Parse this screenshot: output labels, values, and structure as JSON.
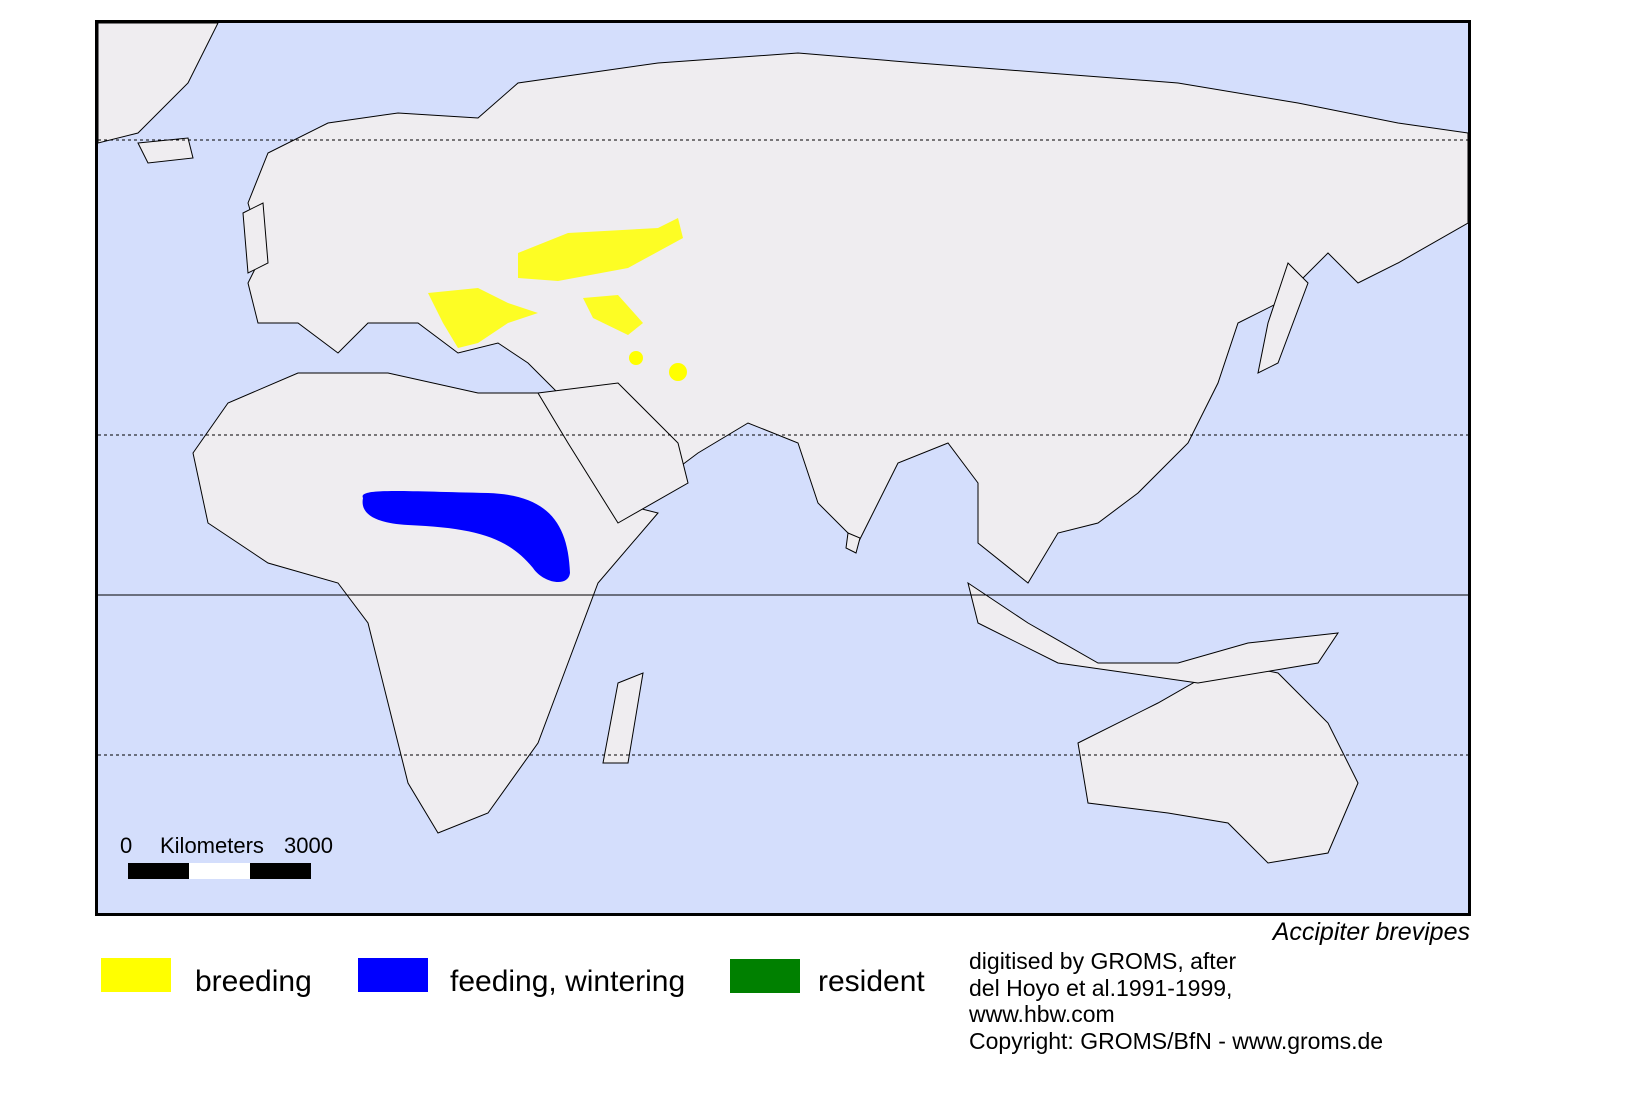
{
  "map": {
    "species": "Accipiter brevipes",
    "colors": {
      "ocean": "#d4defc",
      "land": "#efedf0",
      "breeding": "#ffff00",
      "wintering": "#0000ff",
      "resident": "#008000"
    },
    "scale": {
      "start": "0",
      "unit": "Kilometers",
      "end": "3000"
    }
  },
  "legend": [
    {
      "label": "breeding",
      "color": "#ffff00"
    },
    {
      "label": "feeding, wintering",
      "color": "#0000ff"
    },
    {
      "label": "resident",
      "color": "#008000"
    }
  ],
  "credit": [
    "digitised by GROMS, after",
    "del Hoyo et al.1991-1999,",
    "www.hbw.com",
    "Copyright: GROMS/BfN - www.groms.de"
  ]
}
